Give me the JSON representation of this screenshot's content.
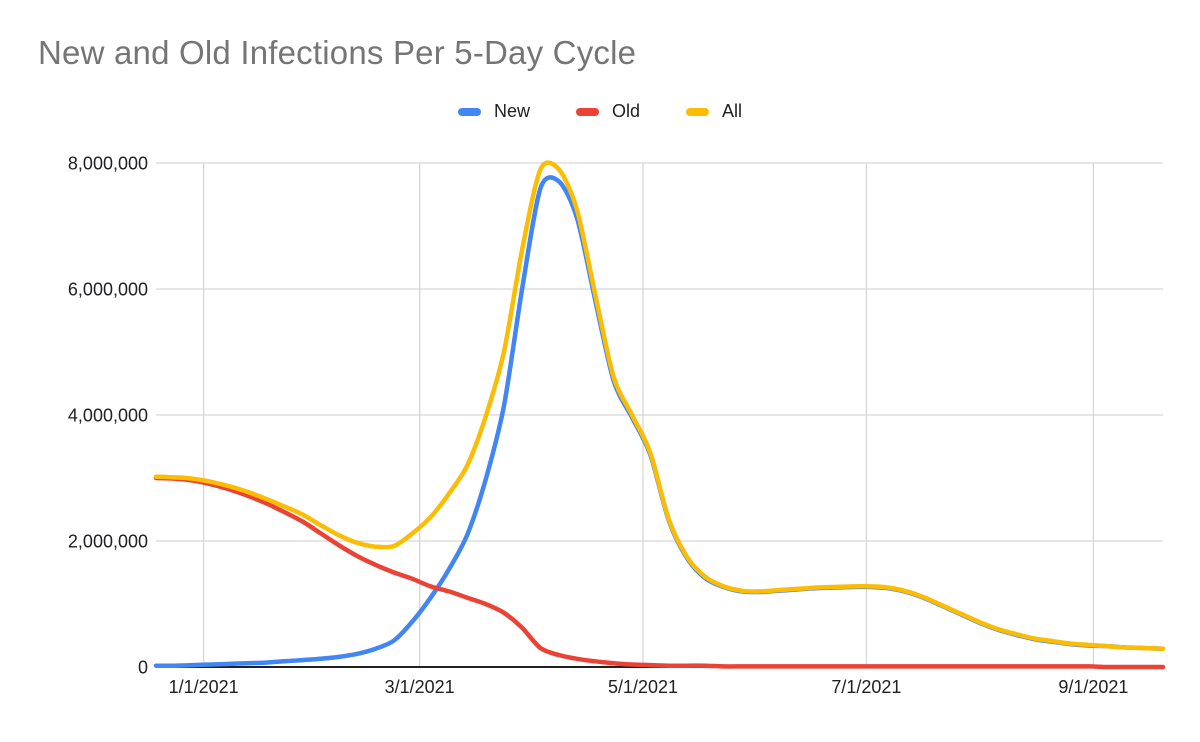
{
  "page": {
    "background": "#ffffff"
  },
  "title": {
    "text": "New and Old Infections Per 5-Day Cycle",
    "color": "#757575"
  },
  "legend": {
    "position": "top-center",
    "items": [
      {
        "label": "New",
        "color": "#4285f4"
      },
      {
        "label": "Old",
        "color": "#ea4335"
      },
      {
        "label": "All",
        "color": "#fbbc04"
      }
    ]
  },
  "chart_data": {
    "type": "line",
    "title": "New and Old Infections Per 5-Day Cycle",
    "xlabel": "",
    "ylabel": "",
    "grid": true,
    "smooth": true,
    "legend_position": "top",
    "background": "#ffffff",
    "grid_color": "#d6d6d6",
    "axis_color": "#212121",
    "label_color": "#202124",
    "ylim": [
      0,
      8000000
    ],
    "yticks": [
      0,
      2000000,
      4000000,
      6000000,
      8000000
    ],
    "ytick_labels": [
      "0",
      "2,000,000",
      "4,000,000",
      "6,000,000",
      "8,000,000"
    ],
    "xticks": [
      "1/1/2021",
      "3/1/2021",
      "5/1/2021",
      "7/1/2021",
      "9/1/2021"
    ],
    "x_interval_days": 5,
    "x": [
      "12/19/2020",
      "12/24/2020",
      "12/29/2020",
      "1/3/2021",
      "1/8/2021",
      "1/13/2021",
      "1/18/2021",
      "1/23/2021",
      "1/28/2021",
      "2/2/2021",
      "2/7/2021",
      "2/12/2021",
      "2/17/2021",
      "2/22/2021",
      "2/27/2021",
      "3/4/2021",
      "3/9/2021",
      "3/14/2021",
      "3/19/2021",
      "3/24/2021",
      "3/29/2021",
      "4/3/2021",
      "4/8/2021",
      "4/13/2021",
      "4/18/2021",
      "4/23/2021",
      "4/28/2021",
      "5/3/2021",
      "5/8/2021",
      "5/13/2021",
      "5/18/2021",
      "5/23/2021",
      "5/28/2021",
      "6/2/2021",
      "6/7/2021",
      "6/12/2021",
      "6/17/2021",
      "6/22/2021",
      "6/27/2021",
      "7/2/2021",
      "7/7/2021",
      "7/12/2021",
      "7/17/2021",
      "7/22/2021",
      "7/27/2021",
      "8/1/2021",
      "8/6/2021",
      "8/11/2021",
      "8/16/2021",
      "8/21/2021",
      "8/26/2021",
      "8/31/2021",
      "9/5/2021",
      "9/10/2021",
      "9/15/2021",
      "9/20/2021"
    ],
    "series": [
      {
        "name": "New",
        "color": "#4285f4",
        "values": [
          20000,
          20000,
          30000,
          40000,
          50000,
          60000,
          70000,
          90000,
          110000,
          130000,
          160000,
          210000,
          290000,
          420000,
          720000,
          1100000,
          1550000,
          2100000,
          2970000,
          4140000,
          6010000,
          7600000,
          7710000,
          7120000,
          5810000,
          4540000,
          3960000,
          3370000,
          2330000,
          1730000,
          1410000,
          1270000,
          1200000,
          1190000,
          1210000,
          1230000,
          1250000,
          1260000,
          1270000,
          1270000,
          1250000,
          1190000,
          1090000,
          960000,
          830000,
          700000,
          590000,
          510000,
          440000,
          400000,
          360000,
          340000,
          330000,
          310000,
          300000,
          290000
        ]
      },
      {
        "name": "Old",
        "color": "#ea4335",
        "values": [
          3000000,
          2990000,
          2960000,
          2900000,
          2820000,
          2720000,
          2600000,
          2460000,
          2310000,
          2120000,
          1930000,
          1760000,
          1620000,
          1500000,
          1400000,
          1280000,
          1200000,
          1100000,
          1000000,
          860000,
          620000,
          300000,
          190000,
          130000,
          90000,
          60000,
          40000,
          30000,
          20000,
          20000,
          20000,
          10000,
          10000,
          10000,
          10000,
          10000,
          10000,
          10000,
          10000,
          10000,
          10000,
          10000,
          10000,
          10000,
          10000,
          10000,
          10000,
          10000,
          10000,
          10000,
          10000,
          10000,
          0,
          0,
          0,
          0
        ]
      },
      {
        "name": "All",
        "color": "#fbbc04",
        "values": [
          3020000,
          3010000,
          2990000,
          2940000,
          2870000,
          2780000,
          2670000,
          2550000,
          2420000,
          2250000,
          2090000,
          1970000,
          1910000,
          1920000,
          2120000,
          2380000,
          2750000,
          3200000,
          3970000,
          5000000,
          6630000,
          7900000,
          7900000,
          7250000,
          5900000,
          4600000,
          4000000,
          3400000,
          2350000,
          1750000,
          1430000,
          1280000,
          1210000,
          1200000,
          1220000,
          1240000,
          1260000,
          1270000,
          1280000,
          1280000,
          1260000,
          1200000,
          1100000,
          970000,
          840000,
          710000,
          600000,
          520000,
          450000,
          410000,
          370000,
          350000,
          330000,
          310000,
          300000,
          290000
        ]
      }
    ],
    "draw_order_note": "series drawn in listed order; All on top, Old over New"
  }
}
